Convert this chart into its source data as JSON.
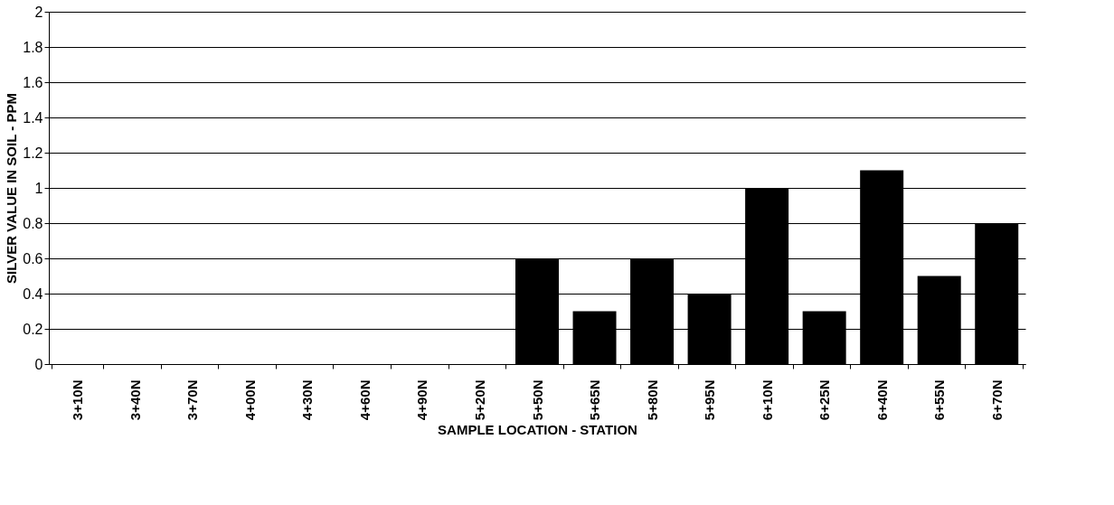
{
  "chart_data": {
    "type": "bar",
    "xlabel": "SAMPLE LOCATION - STATION",
    "ylabel": "SILVER VALUE IN SOIL - PPM",
    "categories": [
      "3+10N",
      "3+40N",
      "3+70N",
      "4+00N",
      "4+30N",
      "4+60N",
      "4+90N",
      "5+20N",
      "5+50N",
      "5+65N",
      "5+80N",
      "5+95N",
      "6+10N",
      "6+25N",
      "6+40N",
      "6+55N",
      "6+70N"
    ],
    "values": [
      0,
      0,
      0,
      0,
      0,
      0,
      0,
      0,
      0.6,
      0.3,
      0.6,
      0.4,
      1.0,
      0.3,
      1.1,
      0.5,
      0.8
    ],
    "color": "#000000",
    "ylim": [
      0,
      2
    ],
    "yticks": [
      0,
      0.2,
      0.4,
      0.6,
      0.8,
      1,
      1.2,
      1.4,
      1.6,
      1.8,
      2
    ],
    "grid": "y"
  }
}
